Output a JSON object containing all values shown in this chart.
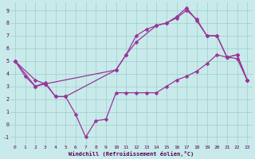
{
  "xlabel": "Windchill (Refroidissement éolien,°C)",
  "bg_color": "#c8eaea",
  "grid_color": "#a0cccc",
  "line_color": "#993399",
  "marker": "D",
  "markersize": 2.5,
  "linewidth": 0.9,
  "xlim": [
    -0.5,
    23.5
  ],
  "ylim": [
    -1.6,
    9.6
  ],
  "xticks": [
    0,
    1,
    2,
    3,
    4,
    5,
    6,
    7,
    8,
    9,
    10,
    11,
    12,
    13,
    14,
    15,
    16,
    17,
    18,
    19,
    20,
    21,
    22,
    23
  ],
  "yticks": [
    -1,
    0,
    1,
    2,
    3,
    4,
    5,
    6,
    7,
    8,
    9
  ],
  "line1_x": [
    0,
    1,
    2,
    3,
    4,
    5,
    6,
    7,
    8,
    9,
    10,
    11,
    12,
    13,
    14,
    15,
    16,
    17,
    18,
    19,
    20,
    21,
    22,
    23
  ],
  "line1_y": [
    5.0,
    3.8,
    3.0,
    3.2,
    2.2,
    2.2,
    0.8,
    -1.0,
    0.3,
    0.4,
    2.5,
    2.5,
    2.5,
    2.5,
    2.5,
    3.0,
    3.5,
    3.8,
    4.2,
    4.8,
    5.5,
    5.3,
    5.2,
    3.5
  ],
  "line2_x": [
    0,
    2,
    3,
    4,
    5,
    10,
    11,
    12,
    13,
    14,
    15,
    16,
    17,
    18,
    19,
    20,
    21,
    22,
    23
  ],
  "line2_y": [
    5.0,
    3.0,
    3.3,
    2.2,
    2.2,
    4.3,
    5.5,
    7.0,
    7.5,
    7.8,
    8.0,
    8.5,
    9.2,
    8.2,
    7.0,
    7.0,
    5.3,
    5.5,
    3.5
  ],
  "line3_x": [
    0,
    2,
    3,
    10,
    11,
    12,
    14,
    15,
    16,
    17,
    18,
    19,
    20,
    21,
    22,
    23
  ],
  "line3_y": [
    5.0,
    3.5,
    3.2,
    4.3,
    5.5,
    6.5,
    7.8,
    8.0,
    8.4,
    9.0,
    8.3,
    7.0,
    7.0,
    5.3,
    5.5,
    3.5
  ],
  "xlabel_fontsize": 5.0,
  "tick_fontsize": 4.5
}
